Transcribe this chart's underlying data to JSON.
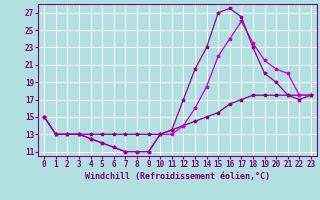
{
  "xlabel": "Windchill (Refroidissement éolien,°C)",
  "bg_color": "#b2dfdf",
  "grid_color": "#ffffff",
  "xlim": [
    -0.5,
    23.5
  ],
  "ylim": [
    10.5,
    28.0
  ],
  "yticks": [
    11,
    13,
    15,
    17,
    19,
    21,
    23,
    25,
    27
  ],
  "xticks": [
    0,
    1,
    2,
    3,
    4,
    5,
    6,
    7,
    8,
    9,
    10,
    11,
    12,
    13,
    14,
    15,
    16,
    17,
    18,
    19,
    20,
    21,
    22,
    23
  ],
  "curve1_x": [
    0,
    1,
    2,
    3,
    4,
    5,
    6,
    7,
    8,
    9,
    10,
    11,
    12,
    13,
    14,
    15,
    16,
    17,
    18,
    19,
    20,
    21,
    22,
    23
  ],
  "curve1_y": [
    15.0,
    13.0,
    13.0,
    13.0,
    12.5,
    12.0,
    11.5,
    11.0,
    11.0,
    11.0,
    13.0,
    13.5,
    17.0,
    20.5,
    23.0,
    27.0,
    27.5,
    26.5,
    23.0,
    20.0,
    19.0,
    17.5,
    17.0,
    17.5
  ],
  "curve2_x": [
    0,
    1,
    2,
    3,
    4,
    5,
    6,
    7,
    8,
    9,
    10,
    11,
    12,
    13,
    14,
    15,
    16,
    17,
    18,
    19,
    20,
    21,
    22,
    23
  ],
  "curve2_y": [
    15.0,
    13.0,
    13.0,
    13.0,
    12.5,
    12.0,
    11.5,
    11.0,
    11.0,
    11.0,
    13.0,
    13.0,
    14.0,
    16.0,
    18.5,
    22.0,
    24.0,
    26.0,
    23.5,
    21.5,
    20.5,
    20.0,
    17.5,
    17.5
  ],
  "curve3_x": [
    0,
    1,
    2,
    3,
    4,
    5,
    6,
    7,
    8,
    9,
    10,
    11,
    12,
    13,
    14,
    15,
    16,
    17,
    18,
    19,
    20,
    21,
    22,
    23
  ],
  "curve3_y": [
    15.0,
    13.0,
    13.0,
    13.0,
    13.0,
    13.0,
    13.0,
    13.0,
    13.0,
    13.0,
    13.0,
    13.5,
    14.0,
    14.5,
    15.0,
    15.5,
    16.5,
    17.0,
    17.5,
    17.5,
    17.5,
    17.5,
    17.5,
    17.5
  ],
  "curve1_color": "#990099",
  "curve2_color": "#cc00cc",
  "curve3_color": "#880088",
  "xlabel_fontsize": 6,
  "tick_fontsize": 5.5
}
